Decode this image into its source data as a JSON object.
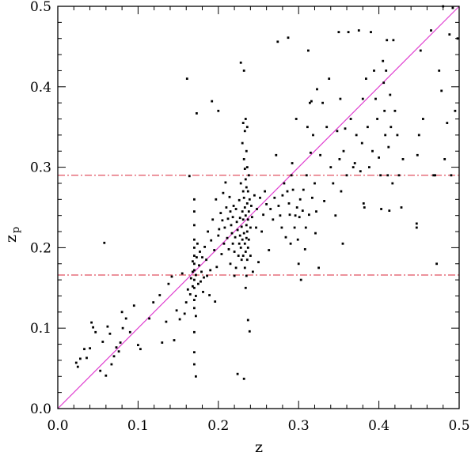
{
  "chart_data": {
    "type": "scatter",
    "xlabel": "z",
    "ylabel": "z",
    "ylabel_subscript": "p",
    "xlim": [
      0.0,
      0.5
    ],
    "ylim": [
      0.0,
      0.5
    ],
    "xticks": [
      "0.0",
      "0.1",
      "0.2",
      "0.3",
      "0.4",
      "0.5"
    ],
    "yticks": [
      "0.0",
      "0.1",
      "0.2",
      "0.3",
      "0.4",
      "0.5"
    ],
    "grid": false,
    "reference_lines": [
      {
        "kind": "diagonal",
        "from": [
          0.0,
          0.0
        ],
        "to": [
          0.5,
          0.5
        ],
        "color": "#e040d0",
        "style": "solid"
      },
      {
        "kind": "horizontal",
        "y": 0.29,
        "color": "#e05060",
        "style": "dash-dot"
      },
      {
        "kind": "horizontal",
        "y": 0.166,
        "color": "#e05060",
        "style": "dash-dot"
      }
    ],
    "points": [
      [
        0.023,
        0.057
      ],
      [
        0.025,
        0.052
      ],
      [
        0.028,
        0.062
      ],
      [
        0.033,
        0.074
      ],
      [
        0.036,
        0.063
      ],
      [
        0.04,
        0.075
      ],
      [
        0.042,
        0.107
      ],
      [
        0.044,
        0.101
      ],
      [
        0.047,
        0.095
      ],
      [
        0.053,
        0.047
      ],
      [
        0.056,
        0.083
      ],
      [
        0.058,
        0.206
      ],
      [
        0.06,
        0.041
      ],
      [
        0.062,
        0.102
      ],
      [
        0.065,
        0.093
      ],
      [
        0.067,
        0.055
      ],
      [
        0.07,
        0.065
      ],
      [
        0.073,
        0.076
      ],
      [
        0.076,
        0.071
      ],
      [
        0.078,
        0.082
      ],
      [
        0.08,
        0.12
      ],
      [
        0.081,
        0.1
      ],
      [
        0.085,
        0.112
      ],
      [
        0.09,
        0.095
      ],
      [
        0.095,
        0.128
      ],
      [
        0.1,
        0.079
      ],
      [
        0.103,
        0.074
      ],
      [
        0.114,
        0.112
      ],
      [
        0.119,
        0.132
      ],
      [
        0.127,
        0.141
      ],
      [
        0.13,
        0.082
      ],
      [
        0.135,
        0.108
      ],
      [
        0.138,
        0.155
      ],
      [
        0.142,
        0.164
      ],
      [
        0.145,
        0.085
      ],
      [
        0.148,
        0.122
      ],
      [
        0.152,
        0.111
      ],
      [
        0.155,
        0.168
      ],
      [
        0.158,
        0.118
      ],
      [
        0.16,
        0.132
      ],
      [
        0.161,
        0.41
      ],
      [
        0.162,
        0.148
      ],
      [
        0.164,
        0.289
      ],
      [
        0.165,
        0.142
      ],
      [
        0.166,
        0.162
      ],
      [
        0.168,
        0.152
      ],
      [
        0.168,
        0.17
      ],
      [
        0.168,
        0.183
      ],
      [
        0.17,
        0.055
      ],
      [
        0.17,
        0.07
      ],
      [
        0.17,
        0.095
      ],
      [
        0.17,
        0.125
      ],
      [
        0.17,
        0.135
      ],
      [
        0.17,
        0.15
      ],
      [
        0.17,
        0.16
      ],
      [
        0.17,
        0.172
      ],
      [
        0.17,
        0.18
      ],
      [
        0.17,
        0.19
      ],
      [
        0.17,
        0.2
      ],
      [
        0.17,
        0.21
      ],
      [
        0.17,
        0.228
      ],
      [
        0.17,
        0.245
      ],
      [
        0.17,
        0.26
      ],
      [
        0.172,
        0.04
      ],
      [
        0.172,
        0.115
      ],
      [
        0.172,
        0.14
      ],
      [
        0.172,
        0.166
      ],
      [
        0.173,
        0.188
      ],
      [
        0.173,
        0.367
      ],
      [
        0.174,
        0.205
      ],
      [
        0.175,
        0.155
      ],
      [
        0.176,
        0.178
      ],
      [
        0.177,
        0.195
      ],
      [
        0.178,
        0.158
      ],
      [
        0.179,
        0.17
      ],
      [
        0.18,
        0.188
      ],
      [
        0.181,
        0.145
      ],
      [
        0.182,
        0.163
      ],
      [
        0.183,
        0.201
      ],
      [
        0.185,
        0.185
      ],
      [
        0.186,
        0.165
      ],
      [
        0.187,
        0.22
      ],
      [
        0.189,
        0.141
      ],
      [
        0.19,
        0.172
      ],
      [
        0.191,
        0.209
      ],
      [
        0.192,
        0.382
      ],
      [
        0.193,
        0.235
      ],
      [
        0.195,
        0.197
      ],
      [
        0.196,
        0.133
      ],
      [
        0.197,
        0.26
      ],
      [
        0.198,
        0.176
      ],
      [
        0.2,
        0.215
      ],
      [
        0.2,
        0.37
      ],
      [
        0.201,
        0.223
      ],
      [
        0.203,
        0.243
      ],
      [
        0.204,
        0.192
      ],
      [
        0.205,
        0.234
      ],
      [
        0.206,
        0.268
      ],
      [
        0.207,
        0.205
      ],
      [
        0.208,
        0.225
      ],
      [
        0.209,
        0.281
      ],
      [
        0.21,
        0.25
      ],
      [
        0.211,
        0.212
      ],
      [
        0.212,
        0.236
      ],
      [
        0.213,
        0.198
      ],
      [
        0.214,
        0.263
      ],
      [
        0.215,
        0.245
      ],
      [
        0.215,
        0.18
      ],
      [
        0.216,
        0.228
      ],
      [
        0.217,
        0.218
      ],
      [
        0.218,
        0.238
      ],
      [
        0.218,
        0.205
      ],
      [
        0.219,
        0.252
      ],
      [
        0.22,
        0.195
      ],
      [
        0.22,
        0.165
      ],
      [
        0.221,
        0.213
      ],
      [
        0.222,
        0.248
      ],
      [
        0.222,
        0.175
      ],
      [
        0.223,
        0.232
      ],
      [
        0.224,
        0.043
      ],
      [
        0.224,
        0.222
      ],
      [
        0.225,
        0.19
      ],
      [
        0.226,
        0.259
      ],
      [
        0.226,
        0.205
      ],
      [
        0.227,
        0.237
      ],
      [
        0.227,
        0.215
      ],
      [
        0.228,
        0.43
      ],
      [
        0.228,
        0.28
      ],
      [
        0.228,
        0.2
      ],
      [
        0.229,
        0.226
      ],
      [
        0.229,
        0.185
      ],
      [
        0.23,
        0.33
      ],
      [
        0.23,
        0.245
      ],
      [
        0.23,
        0.21
      ],
      [
        0.231,
        0.355
      ],
      [
        0.231,
        0.27
      ],
      [
        0.231,
        0.235
      ],
      [
        0.231,
        0.19
      ],
      [
        0.232,
        0.037
      ],
      [
        0.232,
        0.42
      ],
      [
        0.232,
        0.31
      ],
      [
        0.232,
        0.262
      ],
      [
        0.232,
        0.218
      ],
      [
        0.233,
        0.345
      ],
      [
        0.233,
        0.298
      ],
      [
        0.233,
        0.25
      ],
      [
        0.233,
        0.205
      ],
      [
        0.233,
        0.175
      ],
      [
        0.234,
        0.36
      ],
      [
        0.234,
        0.285
      ],
      [
        0.234,
        0.24
      ],
      [
        0.234,
        0.195
      ],
      [
        0.234,
        0.15
      ],
      [
        0.235,
        0.32
      ],
      [
        0.235,
        0.275
      ],
      [
        0.235,
        0.228
      ],
      [
        0.235,
        0.212
      ],
      [
        0.235,
        0.165
      ],
      [
        0.236,
        0.35
      ],
      [
        0.236,
        0.3
      ],
      [
        0.236,
        0.255
      ],
      [
        0.236,
        0.22
      ],
      [
        0.236,
        0.185
      ],
      [
        0.237,
        0.27
      ],
      [
        0.237,
        0.235
      ],
      [
        0.237,
        0.2
      ],
      [
        0.237,
        0.11
      ],
      [
        0.238,
        0.29
      ],
      [
        0.238,
        0.245
      ],
      [
        0.238,
        0.21
      ],
      [
        0.239,
        0.096
      ],
      [
        0.239,
        0.26
      ],
      [
        0.24,
        0.225
      ],
      [
        0.24,
        0.19
      ],
      [
        0.241,
        0.252
      ],
      [
        0.242,
        0.238
      ],
      [
        0.243,
        0.17
      ],
      [
        0.245,
        0.265
      ],
      [
        0.247,
        0.225
      ],
      [
        0.248,
        0.248
      ],
      [
        0.25,
        0.182
      ],
      [
        0.252,
        0.262
      ],
      [
        0.254,
        0.22
      ],
      [
        0.256,
        0.241
      ],
      [
        0.258,
        0.27
      ],
      [
        0.26,
        0.254
      ],
      [
        0.263,
        0.197
      ],
      [
        0.265,
        0.248
      ],
      [
        0.268,
        0.235
      ],
      [
        0.27,
        0.262
      ],
      [
        0.272,
        0.315
      ],
      [
        0.274,
        0.456
      ],
      [
        0.275,
        0.252
      ],
      [
        0.277,
        0.24
      ],
      [
        0.279,
        0.225
      ],
      [
        0.28,
        0.265
      ],
      [
        0.282,
        0.28
      ],
      [
        0.284,
        0.213
      ],
      [
        0.286,
        0.27
      ],
      [
        0.287,
        0.461
      ],
      [
        0.288,
        0.255
      ],
      [
        0.289,
        0.241
      ],
      [
        0.29,
        0.205
      ],
      [
        0.291,
        0.29
      ],
      [
        0.292,
        0.305
      ],
      [
        0.293,
        0.272
      ],
      [
        0.295,
        0.225
      ],
      [
        0.296,
        0.24
      ],
      [
        0.297,
        0.36
      ],
      [
        0.298,
        0.25
      ],
      [
        0.299,
        0.21
      ],
      [
        0.3,
        0.18
      ],
      [
        0.301,
        0.238
      ],
      [
        0.302,
        0.26
      ],
      [
        0.303,
        0.16
      ],
      [
        0.305,
        0.246
      ],
      [
        0.306,
        0.272
      ],
      [
        0.308,
        0.198
      ],
      [
        0.309,
        0.225
      ],
      [
        0.31,
        0.29
      ],
      [
        0.311,
        0.35
      ],
      [
        0.312,
        0.445
      ],
      [
        0.313,
        0.241
      ],
      [
        0.314,
        0.38
      ],
      [
        0.315,
        0.318
      ],
      [
        0.316,
        0.382
      ],
      [
        0.317,
        0.262
      ],
      [
        0.318,
        0.34
      ],
      [
        0.32,
        0.28
      ],
      [
        0.321,
        0.218
      ],
      [
        0.322,
        0.245
      ],
      [
        0.323,
        0.397
      ],
      [
        0.325,
        0.175
      ],
      [
        0.327,
        0.315
      ],
      [
        0.33,
        0.38
      ],
      [
        0.332,
        0.258
      ],
      [
        0.335,
        0.35
      ],
      [
        0.338,
        0.41
      ],
      [
        0.34,
        0.3
      ],
      [
        0.343,
        0.28
      ],
      [
        0.346,
        0.24
      ],
      [
        0.348,
        0.345
      ],
      [
        0.35,
        0.468
      ],
      [
        0.351,
        0.31
      ],
      [
        0.352,
        0.385
      ],
      [
        0.353,
        0.27
      ],
      [
        0.355,
        0.205
      ],
      [
        0.356,
        0.32
      ],
      [
        0.358,
        0.348
      ],
      [
        0.36,
        0.29
      ],
      [
        0.362,
        0.468
      ],
      [
        0.365,
        0.36
      ],
      [
        0.368,
        0.3
      ],
      [
        0.37,
        0.305
      ],
      [
        0.372,
        0.34
      ],
      [
        0.375,
        0.47
      ],
      [
        0.377,
        0.295
      ],
      [
        0.379,
        0.33
      ],
      [
        0.38,
        0.385
      ],
      [
        0.381,
        0.255
      ],
      [
        0.382,
        0.25
      ],
      [
        0.384,
        0.41
      ],
      [
        0.386,
        0.35
      ],
      [
        0.388,
        0.3
      ],
      [
        0.39,
        0.468
      ],
      [
        0.392,
        0.32
      ],
      [
        0.394,
        0.42
      ],
      [
        0.396,
        0.385
      ],
      [
        0.398,
        0.36
      ],
      [
        0.4,
        0.312
      ],
      [
        0.402,
        0.29
      ],
      [
        0.403,
        0.248
      ],
      [
        0.405,
        0.432
      ],
      [
        0.406,
        0.405
      ],
      [
        0.407,
        0.37
      ],
      [
        0.408,
        0.34
      ],
      [
        0.409,
        0.42
      ],
      [
        0.41,
        0.458
      ],
      [
        0.411,
        0.29
      ],
      [
        0.412,
        0.325
      ],
      [
        0.413,
        0.246
      ],
      [
        0.414,
        0.39
      ],
      [
        0.415,
        0.35
      ],
      [
        0.417,
        0.28
      ],
      [
        0.418,
        0.458
      ],
      [
        0.42,
        0.37
      ],
      [
        0.423,
        0.34
      ],
      [
        0.425,
        0.29
      ],
      [
        0.428,
        0.25
      ],
      [
        0.43,
        0.31
      ],
      [
        0.447,
        0.23
      ],
      [
        0.447,
        0.225
      ],
      [
        0.448,
        0.315
      ],
      [
        0.45,
        0.34
      ],
      [
        0.452,
        0.445
      ],
      [
        0.455,
        0.36
      ],
      [
        0.465,
        0.47
      ],
      [
        0.468,
        0.29
      ],
      [
        0.47,
        0.29
      ],
      [
        0.472,
        0.18
      ],
      [
        0.475,
        0.42
      ],
      [
        0.478,
        0.395
      ],
      [
        0.48,
        0.5
      ],
      [
        0.482,
        0.31
      ],
      [
        0.485,
        0.355
      ],
      [
        0.488,
        0.465
      ],
      [
        0.49,
        0.29
      ],
      [
        0.492,
        0.498
      ],
      [
        0.495,
        0.37
      ],
      [
        0.498,
        0.46
      ]
    ]
  }
}
